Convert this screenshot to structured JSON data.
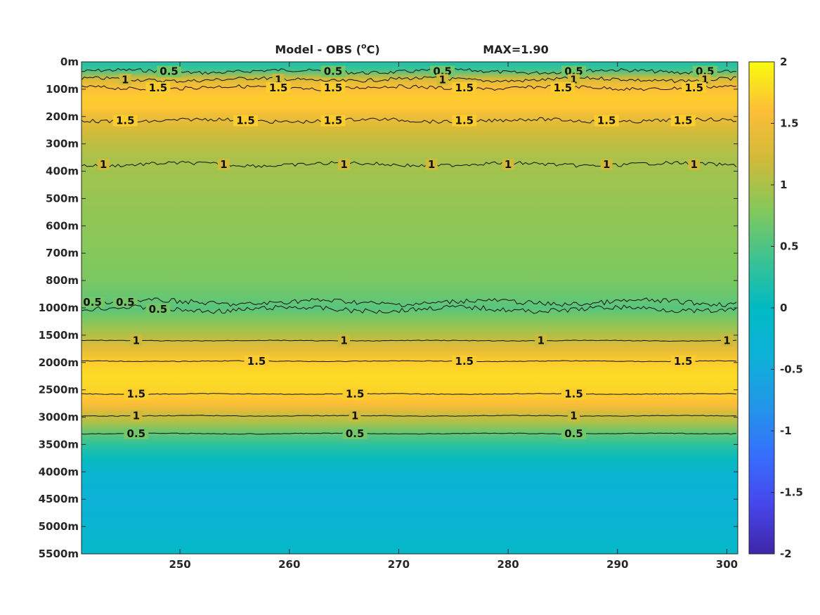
{
  "chart_data": {
    "type": "heatmap",
    "title": "Model - OBS (",
    "title_sup": "o",
    "title_unit": "C)",
    "max_label": "MAX=1.90",
    "xlim": [
      241,
      301
    ],
    "x_ticks": [
      "250",
      "260",
      "270",
      "280",
      "290",
      "300"
    ],
    "x_tick_values": [
      250,
      260,
      270,
      280,
      290,
      300
    ],
    "y_ticks": [
      "0m",
      "100m",
      "200m",
      "300m",
      "400m",
      "500m",
      "600m",
      "700m",
      "800m",
      "1000m",
      "1500m",
      "2000m",
      "2500m",
      "3000m",
      "3500m",
      "4000m",
      "4500m",
      "5000m",
      "5500m"
    ],
    "clim": [
      -2,
      2
    ],
    "colorbar_ticks": [
      "2",
      "1.5",
      "1",
      "0.5",
      "0",
      "-0.5",
      "-1",
      "-1.5",
      "-2"
    ],
    "colorbar_tick_values": [
      2,
      1.5,
      1,
      0.5,
      0,
      -0.5,
      -1,
      -1.5,
      -2
    ],
    "colormap": "parula",
    "depth_profile": {
      "depth_index": [
        0,
        0.3,
        0.6,
        0.8,
        1.0,
        1.3,
        1.7,
        2.0,
        2.5,
        3.0,
        3.5,
        4.0,
        5.0,
        6.0,
        7.0,
        8.0,
        8.8,
        9.0,
        9.3,
        9.6,
        10.0,
        10.5,
        11.0,
        11.5,
        12.0,
        12.5,
        12.8,
        13.2,
        13.6,
        14.0,
        14.5,
        15.0,
        16.0,
        17.0,
        18.0
      ],
      "value": [
        0.2,
        0.4,
        1.2,
        1.45,
        1.6,
        1.7,
        1.65,
        1.45,
        1.25,
        1.1,
        1.0,
        0.95,
        0.9,
        0.85,
        0.8,
        0.75,
        0.6,
        0.55,
        0.7,
        0.85,
        1.05,
        1.4,
        1.7,
        1.8,
        1.75,
        1.6,
        1.3,
        1.0,
        0.6,
        0.3,
        0.05,
        -0.2,
        -0.35,
        -0.25,
        -0.1
      ]
    },
    "contours": [
      {
        "level": "0.5",
        "depth_index": 0.35,
        "labels_x": [
          249,
          264,
          274,
          286,
          298
        ]
      },
      {
        "level": "1",
        "depth_index": 0.65,
        "labels_x": [
          245,
          259,
          274,
          286,
          298
        ]
      },
      {
        "level": "1.5",
        "depth_index": 0.95,
        "labels_x": [
          248,
          259,
          264,
          276,
          285,
          297
        ]
      },
      {
        "level": "1.5",
        "depth_index": 2.15,
        "labels_x": [
          245,
          256,
          264,
          276,
          289,
          296
        ]
      },
      {
        "level": "1",
        "depth_index": 3.75,
        "labels_x": [
          243,
          254,
          265,
          273,
          280,
          289,
          297
        ]
      },
      {
        "level": "0.5",
        "depth_index": 8.8,
        "labels_x": [
          242,
          245
        ]
      },
      {
        "level": "0.5",
        "depth_index": 9.05,
        "labels_x": [
          248
        ]
      },
      {
        "level": "1",
        "depth_index": 10.2,
        "labels_x": [
          246,
          265,
          283,
          300
        ]
      },
      {
        "level": "1.5",
        "depth_index": 10.95,
        "labels_x": [
          257,
          276,
          296
        ]
      },
      {
        "level": "1.5",
        "depth_index": 12.15,
        "labels_x": [
          246,
          266,
          286
        ]
      },
      {
        "level": "1",
        "depth_index": 12.95,
        "labels_x": [
          246,
          266,
          286
        ]
      },
      {
        "level": "0.5",
        "depth_index": 13.6,
        "labels_x": [
          246,
          266,
          286
        ]
      }
    ]
  }
}
